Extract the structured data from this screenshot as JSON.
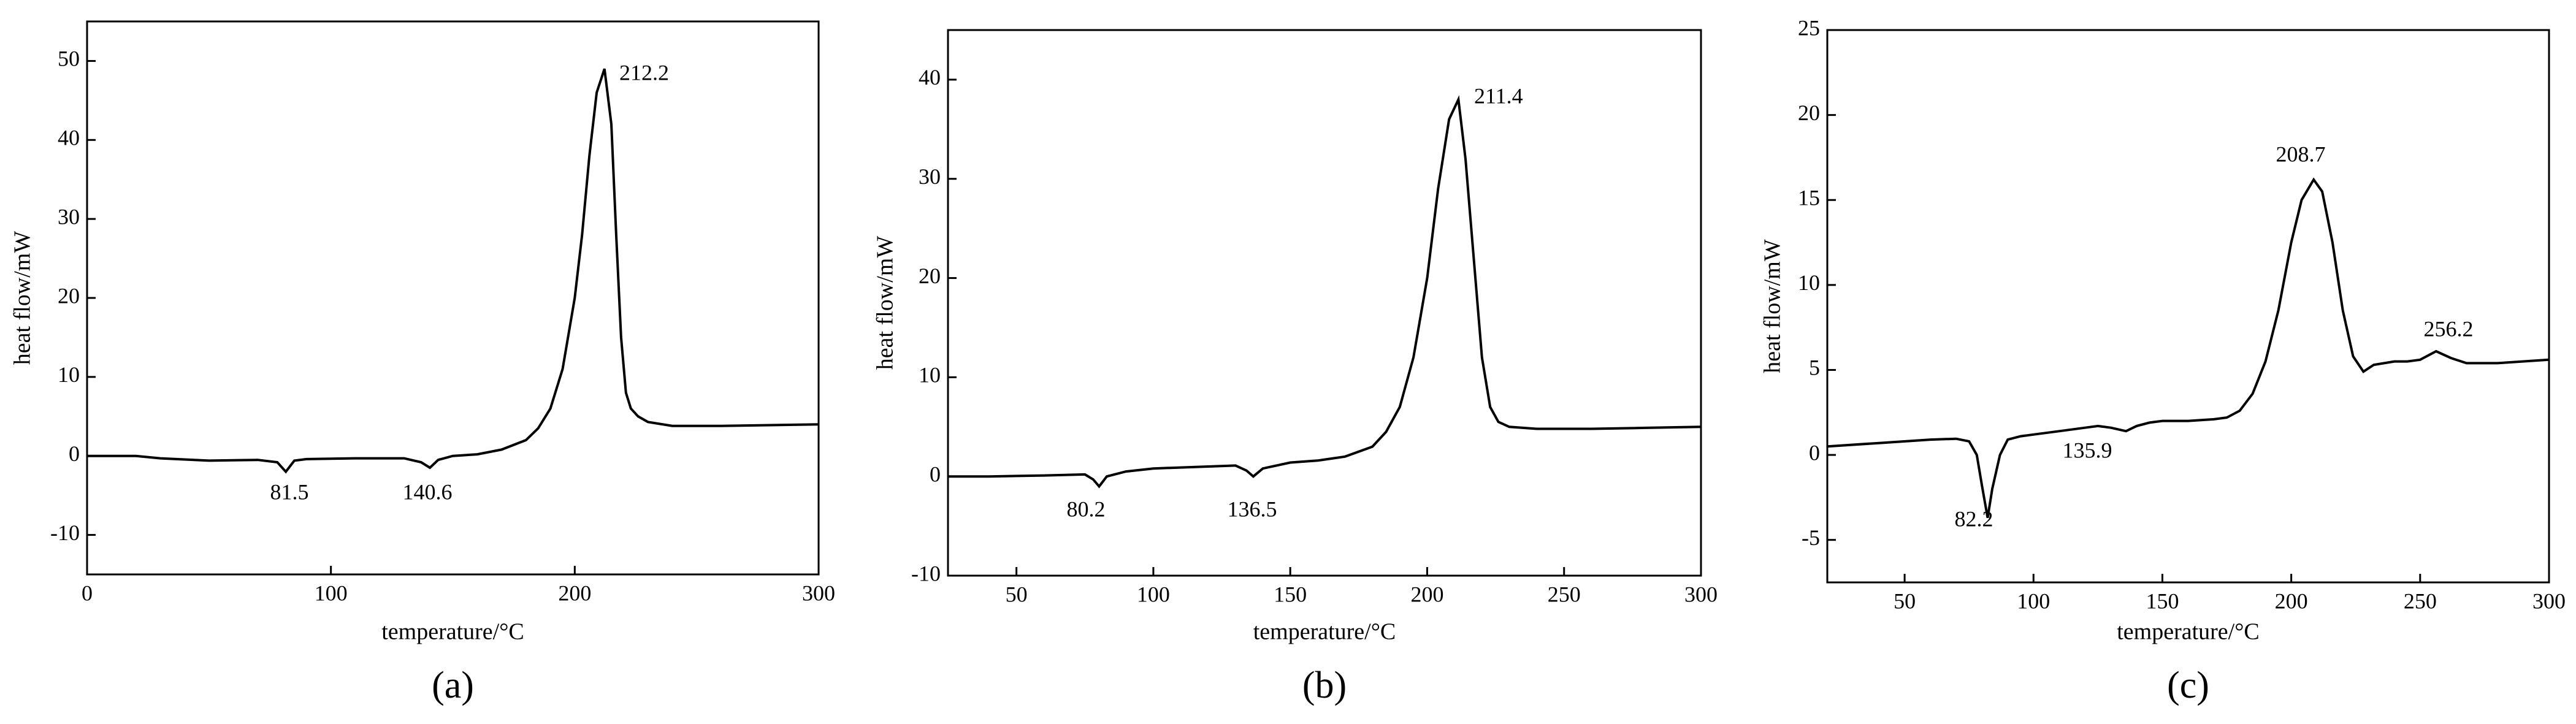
{
  "chart_data": [
    {
      "type": "line",
      "panel_label": "(a)",
      "x_label": "temperature/°C",
      "y_label": "heat flow/mW",
      "color": "#000000",
      "xlim": [
        0,
        300
      ],
      "ylim": [
        -15,
        55
      ],
      "xticks": [
        0,
        100,
        200,
        300
      ],
      "yticks": [
        -10,
        0,
        10,
        20,
        30,
        40,
        50
      ],
      "x": [
        0,
        20,
        30,
        50,
        70,
        78,
        81.5,
        85,
        90,
        110,
        130,
        137,
        140.6,
        144,
        150,
        160,
        170,
        180,
        185,
        190,
        195,
        200,
        203,
        206,
        209,
        212.2,
        215,
        217,
        219,
        221,
        223,
        226,
        230,
        240,
        260,
        280,
        300
      ],
      "values": [
        0,
        0,
        -0.3,
        -0.6,
        -0.5,
        -0.8,
        -2.0,
        -0.6,
        -0.4,
        -0.3,
        -0.3,
        -0.8,
        -1.5,
        -0.5,
        0,
        0.2,
        0.8,
        2,
        3.5,
        6,
        11,
        20,
        28,
        38,
        46,
        49,
        42,
        28,
        15,
        8,
        6,
        5,
        4.3,
        3.8,
        3.8,
        3.9,
        4
      ],
      "annotations": [
        "212.2",
        "81.5",
        "140.6"
      ]
    },
    {
      "type": "line",
      "panel_label": "(b)",
      "x_label": "temperature/°C",
      "y_label": "heat flow/mW",
      "color": "#000000",
      "xlim": [
        25,
        300
      ],
      "ylim": [
        -10,
        45
      ],
      "xticks": [
        50,
        100,
        150,
        200,
        250,
        300
      ],
      "yticks": [
        -10,
        0,
        10,
        20,
        30,
        40
      ],
      "x": [
        25,
        40,
        60,
        75,
        78,
        80.2,
        83,
        90,
        100,
        120,
        130,
        134,
        136.5,
        140,
        150,
        160,
        170,
        180,
        185,
        190,
        195,
        200,
        204,
        208,
        211.4,
        214,
        217,
        220,
        223,
        226,
        230,
        240,
        260,
        280,
        300
      ],
      "values": [
        0,
        0,
        0.1,
        0.2,
        -0.3,
        -1,
        0,
        0.5,
        0.8,
        1,
        1.1,
        0.6,
        0,
        0.8,
        1.4,
        1.6,
        2,
        3,
        4.5,
        7,
        12,
        20,
        29,
        36,
        38,
        32,
        22,
        12,
        7,
        5.5,
        5,
        4.8,
        4.8,
        4.9,
        5
      ],
      "annotations": [
        "211.4",
        "80.2",
        "136.5"
      ]
    },
    {
      "type": "line",
      "panel_label": "(c)",
      "x_label": "temperature/°C",
      "y_label": "heat flow/mW",
      "color": "#000000",
      "xlim": [
        20,
        300
      ],
      "ylim": [
        -7.5,
        25
      ],
      "xticks": [
        50,
        100,
        150,
        200,
        250,
        300
      ],
      "yticks": [
        -5,
        0,
        5,
        10,
        15,
        20,
        25
      ],
      "x": [
        20,
        40,
        60,
        70,
        75,
        78,
        80,
        82.2,
        84,
        87,
        90,
        95,
        100,
        110,
        120,
        125,
        130,
        135.9,
        140,
        145,
        150,
        160,
        170,
        175,
        180,
        185,
        190,
        195,
        200,
        204,
        208.7,
        212,
        216,
        220,
        224,
        228,
        232,
        240,
        245,
        250,
        256.2,
        262,
        268,
        280,
        300
      ],
      "values": [
        0.5,
        0.7,
        0.9,
        0.95,
        0.8,
        0,
        -1.8,
        -3.7,
        -2,
        0,
        0.9,
        1.1,
        1.2,
        1.4,
        1.6,
        1.7,
        1.6,
        1.4,
        1.7,
        1.9,
        2,
        2,
        2.1,
        2.2,
        2.6,
        3.6,
        5.5,
        8.5,
        12.5,
        15,
        16.2,
        15.5,
        12.5,
        8.5,
        5.8,
        4.9,
        5.3,
        5.5,
        5.5,
        5.6,
        6.1,
        5.7,
        5.4,
        5.4,
        5.6
      ],
      "annotations": [
        "208.7",
        "256.2",
        "135.9",
        "82.2"
      ]
    }
  ]
}
